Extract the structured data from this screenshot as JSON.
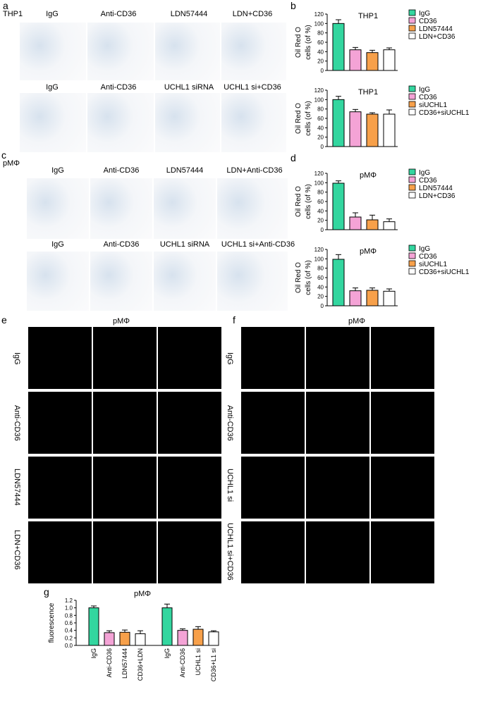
{
  "panels": {
    "a": {
      "letter": "a",
      "cell": "THP1",
      "row1": [
        "IgG",
        "Anti-CD36",
        "LDN57444",
        "LDN+CD36"
      ],
      "row2": [
        "IgG",
        "Anti-CD36",
        "UCHL1 siRNA",
        "UCHL1 si+CD36"
      ]
    },
    "c": {
      "letter": "c",
      "cell": "pMΦ",
      "row1": [
        "IgG",
        "Anti-CD36",
        "LDN57444",
        "LDN+Anti-CD36"
      ],
      "row2": [
        "IgG",
        "Anti-CD36",
        "UCHL1 siRNA",
        "UCHL1 si+Anti-CD36"
      ]
    },
    "e": {
      "letter": "e",
      "cell": "pMΦ",
      "rows": [
        "IgG",
        "Anti-CD36",
        "LDN57444",
        "LDN+CD36"
      ]
    },
    "f": {
      "letter": "f",
      "cell": "pMΦ",
      "rows": [
        "IgG",
        "Anti-CD36",
        "UCHL1 si",
        "UCHL1 si+CD36"
      ]
    },
    "b": {
      "letter": "b"
    },
    "d": {
      "letter": "d"
    },
    "g": {
      "letter": "g"
    }
  },
  "colors": {
    "green": "#33d69f",
    "pink": "#f4a3d6",
    "orange": "#f7a04a",
    "white": "#ffffff"
  },
  "chart_data": [
    {
      "id": "b1",
      "type": "bar",
      "title": "THP1",
      "ylabel": [
        "Oil Red O",
        "cells (of %)"
      ],
      "ylim": [
        0,
        120
      ],
      "yticks": [
        0,
        20,
        40,
        60,
        80,
        100,
        120
      ],
      "categories": [
        "IgG",
        "CD36",
        "LDN57444",
        "LDN+CD36"
      ],
      "values": [
        100,
        44,
        38,
        44
      ],
      "errors": [
        8,
        5,
        5,
        4
      ]
    },
    {
      "id": "b2",
      "type": "bar",
      "title": "THP1",
      "ylabel": [
        "Oil Red O",
        "cells (of %)"
      ],
      "ylim": [
        0,
        120
      ],
      "yticks": [
        0,
        20,
        40,
        60,
        80,
        100,
        120
      ],
      "categories": [
        "IgG",
        "CD36",
        "siUCHL1",
        "CD36+siUCHL1"
      ],
      "values": [
        100,
        74,
        69,
        69
      ],
      "errors": [
        7,
        5,
        3,
        9
      ]
    },
    {
      "id": "d1",
      "type": "bar",
      "title": "pMΦ",
      "ylabel": [
        "Oil Red O",
        "cells (of %)"
      ],
      "ylim": [
        0,
        120
      ],
      "yticks": [
        0,
        20,
        40,
        60,
        80,
        100,
        120
      ],
      "categories": [
        "IgG",
        "CD36",
        "LDN57444",
        "LDN+CD36"
      ],
      "values": [
        99,
        27,
        21,
        17
      ],
      "errors": [
        5,
        9,
        10,
        6
      ]
    },
    {
      "id": "d2",
      "type": "bar",
      "title": "pMΦ",
      "ylabel": [
        "Oil Red O",
        "cells (of %)"
      ],
      "ylim": [
        0,
        120
      ],
      "yticks": [
        0,
        20,
        40,
        60,
        80,
        100,
        120
      ],
      "categories": [
        "IgG",
        "CD36",
        "siUCHL1",
        "CD36+siUCHL1"
      ],
      "values": [
        99,
        32,
        33,
        31
      ],
      "errors": [
        10,
        6,
        5,
        5
      ]
    },
    {
      "id": "g",
      "type": "bar",
      "title": "pMΦ",
      "ylabel": [
        "fluorescence"
      ],
      "ylim": [
        0,
        1.2
      ],
      "yticks": [
        0.0,
        0.2,
        0.4,
        0.6,
        0.8,
        1.0,
        1.2
      ],
      "categories": [
        "IgG",
        "Anti-CD36",
        "LDN57444",
        "CD36+LDN",
        "IgG",
        "Anti-CD36",
        "UCHL1 si",
        "CD36+L1 si"
      ],
      "values": [
        1.0,
        0.34,
        0.35,
        0.31,
        1.0,
        0.4,
        0.43,
        0.36
      ],
      "errors": [
        0.05,
        0.05,
        0.06,
        0.08,
        0.1,
        0.04,
        0.07,
        0.03
      ]
    }
  ]
}
